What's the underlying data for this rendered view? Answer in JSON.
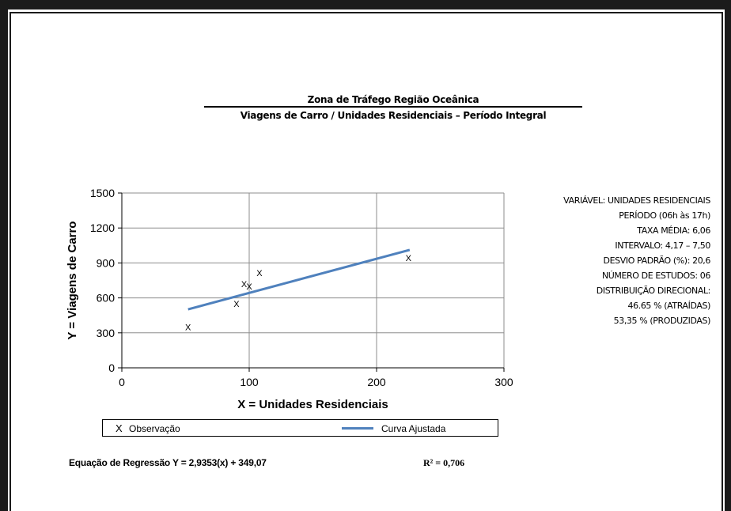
{
  "header": {
    "title": "Zona de Tráfego Região Oceânica",
    "subtitle": "Viagens de Carro / Unidades Residenciais – Período Integral"
  },
  "chart_data": {
    "type": "scatter",
    "xlabel": "X = Unidades Residenciais",
    "ylabel": "Y = Viagens de Carro",
    "xlim": [
      0,
      300
    ],
    "ylim": [
      0,
      1500
    ],
    "x_ticks": [
      0,
      100,
      200,
      300
    ],
    "y_ticks": [
      0,
      300,
      600,
      900,
      1200,
      1500
    ],
    "grid": true,
    "legend_placement": "bottom",
    "series": [
      {
        "name": "Observação",
        "marker": "X",
        "points": [
          {
            "x": 52,
            "y": 350
          },
          {
            "x": 90,
            "y": 550
          },
          {
            "x": 96,
            "y": 720
          },
          {
            "x": 100,
            "y": 700
          },
          {
            "x": 108,
            "y": 815
          },
          {
            "x": 225,
            "y": 945
          }
        ]
      },
      {
        "name": "Curva Ajustada",
        "line": true,
        "color": "#4f81bd",
        "points": [
          {
            "x": 52,
            "y": 502
          },
          {
            "x": 226,
            "y": 1012
          }
        ]
      }
    ]
  },
  "stats": [
    "VARIÁVEL: UNIDADES RESIDENCIAIS",
    "PERÍODO (06h às 17h)",
    "TAXA MÉDIA: 6,06",
    "INTERVALO: 4,17 – 7,50",
    "DESVIO PADRÃO (%): 20,6",
    "NÚMERO DE ESTUDOS: 06",
    "DISTRIBUIÇÃO DIRECIONAL:",
    "46.65 % (ATRAÍDAS)",
    "53,35 % (PRODUZIDAS)"
  ],
  "legend": {
    "observation_symbol": "X",
    "observation_label": "Observação",
    "fit_label": "Curva Ajustada"
  },
  "equation": "Equação de Regressão Y = 2,9353(x) + 349,07",
  "r_squared": "R² = 0,706",
  "colors": {
    "fit_line": "#4f81bd",
    "grid": "#8c8c8c",
    "frame": "#1b1b1b"
  }
}
